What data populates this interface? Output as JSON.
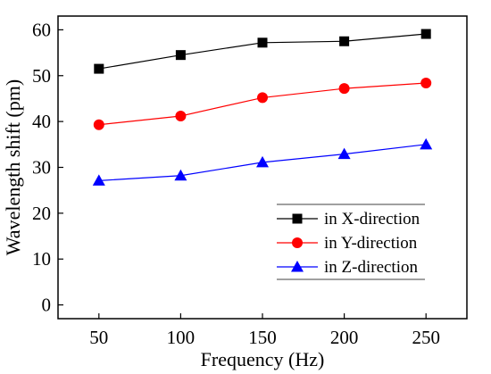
{
  "chart_data": {
    "type": "line",
    "title": "",
    "xlabel": "Frequency (Hz)",
    "ylabel": "Wavelength shift (pm)",
    "x": [
      50,
      100,
      150,
      200,
      250
    ],
    "xticks": [
      50,
      100,
      150,
      200,
      250
    ],
    "yticks": [
      0,
      10,
      20,
      30,
      40,
      50,
      60
    ],
    "xlim": [
      25,
      275
    ],
    "ylim": [
      -3,
      63
    ],
    "grid": false,
    "legend_position": "bottom-right",
    "series": [
      {
        "name": "in X-direction",
        "color": "#000000",
        "marker": "square",
        "values": [
          51.5,
          54.5,
          57.2,
          57.5,
          59.1
        ]
      },
      {
        "name": "in Y-direction",
        "color": "#ff0000",
        "marker": "circle",
        "values": [
          39.3,
          41.2,
          45.2,
          47.2,
          48.4
        ]
      },
      {
        "name": "in Z-direction",
        "color": "#0000ff",
        "marker": "triangle",
        "values": [
          27.1,
          28.2,
          31.1,
          32.9,
          35.0
        ]
      }
    ]
  }
}
